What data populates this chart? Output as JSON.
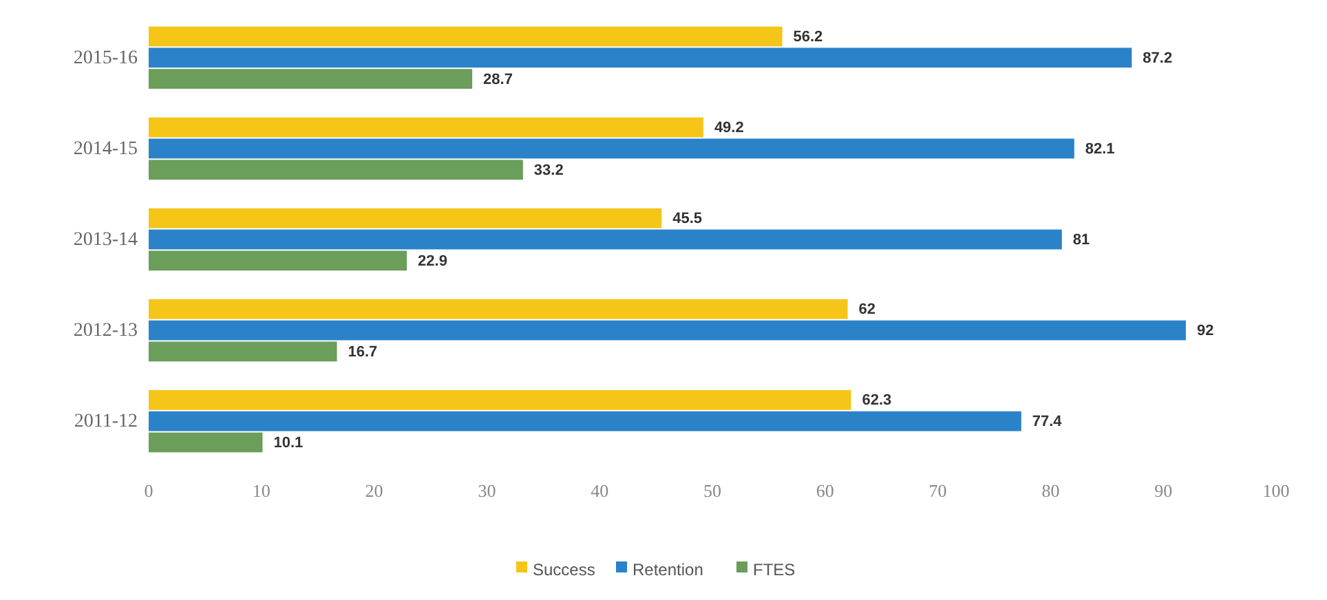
{
  "chart_data": {
    "type": "bar",
    "orientation": "horizontal",
    "categories": [
      "2015-16",
      "2014-15",
      "2013-14",
      "2012-13",
      "2011-12"
    ],
    "series": [
      {
        "name": "Success",
        "color": "#f5c518",
        "values": [
          56.2,
          49.2,
          45.5,
          62,
          62.3
        ]
      },
      {
        "name": "Retention",
        "color": "#2a83c9",
        "values": [
          87.2,
          82.1,
          81,
          92,
          77.4
        ]
      },
      {
        "name": "FTES",
        "color": "#6a9e5a",
        "values": [
          28.7,
          33.2,
          22.9,
          16.7,
          10.1
        ]
      }
    ],
    "xlim": [
      0,
      100
    ],
    "xticks": [
      0,
      10,
      20,
      30,
      40,
      50,
      60,
      70,
      80,
      90,
      100
    ],
    "data_labels": true,
    "legend": "bottom",
    "grid": false
  }
}
